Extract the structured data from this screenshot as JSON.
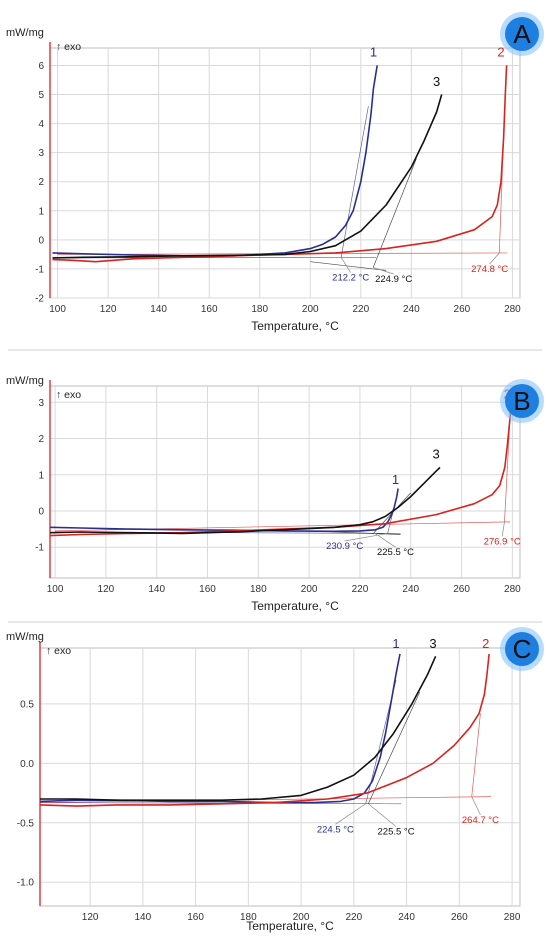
{
  "colors": {
    "curve_1": "#2a2f8f",
    "curve_2": "#d8231f",
    "curve_3": "#111111",
    "badge_fill": "#1f7fe0",
    "badge_glow": "#7cc0ff",
    "left_axis": "#e03030",
    "grid": "#d9d9d9",
    "divider": "#cfcfcf"
  },
  "chart_data": [
    {
      "panel": "A",
      "type": "line",
      "ylabel": "mW/mg",
      "exo_label": "↑ exo",
      "xlabel": "Temperature, °C",
      "xlim": [
        97,
        283
      ],
      "ylim": [
        -2,
        6.6
      ],
      "xticks": [
        100,
        120,
        140,
        160,
        180,
        200,
        220,
        240,
        260,
        280
      ],
      "yticks": [
        -2,
        -1,
        0,
        1,
        2,
        3,
        4,
        5,
        6
      ],
      "ytick_labels": [
        "-2",
        "-1",
        "0",
        "1",
        "2",
        "3",
        "4",
        "5",
        "6"
      ],
      "grid": true,
      "series": [
        {
          "name": "1",
          "color_key": "curve_1",
          "x": [
            98,
            110,
            130,
            150,
            170,
            190,
            200,
            205,
            210,
            214,
            217,
            220,
            222,
            224,
            225,
            226.5
          ],
          "y": [
            -0.45,
            -0.48,
            -0.52,
            -0.55,
            -0.55,
            -0.45,
            -0.3,
            -0.15,
            0.1,
            0.5,
            1.0,
            2.0,
            3.0,
            4.3,
            5.2,
            6.0
          ]
        },
        {
          "name": "2",
          "color_key": "curve_2",
          "x": [
            98,
            105,
            115,
            130,
            150,
            170,
            190,
            210,
            230,
            250,
            265,
            272,
            274,
            275.5,
            276.5,
            277.2,
            277.7
          ],
          "y": [
            -0.68,
            -0.7,
            -0.75,
            -0.65,
            -0.6,
            -0.55,
            -0.5,
            -0.45,
            -0.3,
            -0.05,
            0.35,
            0.8,
            1.2,
            2.0,
            3.5,
            5.0,
            6.0
          ]
        },
        {
          "name": "3",
          "color_key": "curve_3",
          "x": [
            98,
            110,
            130,
            150,
            170,
            190,
            200,
            210,
            220,
            230,
            240,
            245,
            250,
            252
          ],
          "y": [
            -0.62,
            -0.6,
            -0.58,
            -0.55,
            -0.53,
            -0.5,
            -0.4,
            -0.2,
            0.3,
            1.2,
            2.5,
            3.4,
            4.4,
            5.0
          ]
        }
      ],
      "series_labels": [
        {
          "text": "1",
          "x": 225,
          "y": 6.3,
          "color_key": "curve_1"
        },
        {
          "text": "3",
          "x": 250,
          "y": 5.3,
          "color_key": "curve_3"
        },
        {
          "text": "2",
          "x": 275.5,
          "y": 6.3,
          "color_key": "curve_2"
        }
      ],
      "onsets": [
        {
          "label": "212.2 °C",
          "x": 212.2,
          "y": -0.6,
          "lx": 216,
          "ly": -1.4,
          "color_key": "curve_1"
        },
        {
          "label": "224.9 °C",
          "x": 224.9,
          "y": -0.95,
          "lx": 233,
          "ly": -1.45,
          "color_key": "curve_3"
        },
        {
          "label": "274.8 °C",
          "x": 274.8,
          "y": -0.45,
          "lx": 271,
          "ly": -1.1,
          "color_key": "curve_2"
        }
      ],
      "tangents": [
        {
          "x1": 100,
          "y1": -0.62,
          "x2": 226,
          "y2": -0.6,
          "color_key": "curve_1"
        },
        {
          "x1": 212.2,
          "y1": -0.6,
          "x2": 223,
          "y2": 4.6,
          "color_key": "curve_1"
        },
        {
          "x1": 100,
          "y1": -0.5,
          "x2": 278,
          "y2": -0.45,
          "color_key": "curve_2"
        },
        {
          "x1": 274.8,
          "y1": -0.45,
          "x2": 276.5,
          "y2": 3.5,
          "color_key": "curve_2"
        },
        {
          "x1": 200,
          "y1": -0.75,
          "x2": 230,
          "y2": -1.05,
          "color_key": "curve_3"
        },
        {
          "x1": 224.9,
          "y1": -0.95,
          "x2": 242,
          "y2": 2.8,
          "color_key": "curve_3"
        }
      ]
    },
    {
      "panel": "B",
      "type": "line",
      "ylabel": "mW/mg",
      "exo_label": "↑ exo",
      "xlabel": "Temperature, °C",
      "xlim": [
        98,
        283
      ],
      "ylim": [
        -1.85,
        3.45
      ],
      "xticks": [
        100,
        120,
        140,
        160,
        180,
        200,
        220,
        240,
        260,
        280
      ],
      "yticks": [
        -1,
        0,
        1,
        2,
        3
      ],
      "ytick_labels": [
        "-1",
        "0",
        "1",
        "2",
        "3"
      ],
      "grid": true,
      "series": [
        {
          "name": "1",
          "color_key": "curve_1",
          "x": [
            98,
            110,
            130,
            150,
            170,
            190,
            210,
            220,
            226,
            229,
            231,
            232.5,
            233.5,
            234.5,
            235
          ],
          "y": [
            -0.45,
            -0.47,
            -0.5,
            -0.52,
            -0.53,
            -0.55,
            -0.56,
            -0.55,
            -0.52,
            -0.45,
            -0.3,
            -0.1,
            0.1,
            0.4,
            0.62
          ]
        },
        {
          "name": "2",
          "color_key": "curve_2",
          "x": [
            98,
            110,
            130,
            150,
            170,
            190,
            210,
            230,
            250,
            265,
            272,
            275,
            277,
            278,
            279,
            279.7
          ],
          "y": [
            -0.68,
            -0.65,
            -0.62,
            -0.6,
            -0.55,
            -0.5,
            -0.45,
            -0.35,
            -0.1,
            0.2,
            0.45,
            0.7,
            1.2,
            1.8,
            2.5,
            3.05
          ]
        },
        {
          "name": "3",
          "color_key": "curve_3",
          "x": [
            98,
            110,
            130,
            150,
            170,
            190,
            210,
            220,
            225,
            230,
            235,
            240,
            245,
            250,
            251.5
          ],
          "y": [
            -0.6,
            -0.58,
            -0.6,
            -0.62,
            -0.58,
            -0.52,
            -0.45,
            -0.38,
            -0.3,
            -0.15,
            0.1,
            0.4,
            0.75,
            1.1,
            1.2
          ]
        }
      ],
      "series_labels": [
        {
          "text": "1",
          "x": 234,
          "y": 0.75,
          "color_key": "curve_1"
        },
        {
          "text": "3",
          "x": 250,
          "y": 1.45,
          "color_key": "curve_3"
        },
        {
          "text": "2",
          "x": 278,
          "y": 3.1,
          "color_key": "curve_2"
        }
      ],
      "onsets": [
        {
          "label": "230.9 °C",
          "x": 230.9,
          "y": -0.62,
          "lx": 214,
          "ly": -1.05,
          "color_key": "curve_1"
        },
        {
          "label": "225.5 °C",
          "x": 225.5,
          "y": -0.6,
          "lx": 234,
          "ly": -1.22,
          "color_key": "curve_3"
        },
        {
          "label": "276.9 °C",
          "x": 276.9,
          "y": -0.3,
          "lx": 276,
          "ly": -0.92,
          "color_key": "curve_2"
        }
      ],
      "tangents": [
        {
          "x1": 100,
          "y1": -0.58,
          "x2": 236,
          "y2": -0.62,
          "color_key": "curve_1"
        },
        {
          "x1": 230.9,
          "y1": -0.62,
          "x2": 234.5,
          "y2": 0.4,
          "color_key": "curve_1"
        },
        {
          "x1": 100,
          "y1": -0.55,
          "x2": 279,
          "y2": -0.3,
          "color_key": "curve_2"
        },
        {
          "x1": 276.9,
          "y1": -0.3,
          "x2": 279,
          "y2": 2.5,
          "color_key": "curve_2"
        },
        {
          "x1": 200,
          "y1": -0.55,
          "x2": 236,
          "y2": -0.65,
          "color_key": "curve_3"
        },
        {
          "x1": 225.5,
          "y1": -0.6,
          "x2": 240,
          "y2": 0.5,
          "color_key": "curve_3"
        }
      ]
    },
    {
      "panel": "C",
      "type": "line",
      "ylabel": "mW/mg",
      "exo_label": "↑ exo",
      "xlabel": "Temperature, °C",
      "xlim": [
        101,
        283
      ],
      "ylim": [
        -1.2,
        0.97
      ],
      "xticks": [
        120,
        140,
        160,
        180,
        200,
        220,
        240,
        260,
        280
      ],
      "yticks": [
        -1.0,
        -0.5,
        0.0,
        0.5
      ],
      "ytick_labels": [
        "-1.0",
        "-0.5",
        "0.0",
        "0.5"
      ],
      "grid": true,
      "series": [
        {
          "name": "1",
          "color_key": "curve_1",
          "x": [
            101,
            115,
            130,
            150,
            170,
            190,
            205,
            215,
            220,
            224,
            227,
            230,
            232,
            234,
            236,
            237.5
          ],
          "y": [
            -0.32,
            -0.31,
            -0.31,
            -0.32,
            -0.32,
            -0.33,
            -0.33,
            -0.32,
            -0.3,
            -0.25,
            -0.15,
            0.05,
            0.25,
            0.5,
            0.75,
            0.92
          ]
        },
        {
          "name": "2",
          "color_key": "curve_2",
          "x": [
            101,
            115,
            130,
            150,
            170,
            190,
            210,
            225,
            240,
            250,
            258,
            264,
            267.5,
            269.5,
            270.5,
            271.3
          ],
          "y": [
            -0.35,
            -0.36,
            -0.35,
            -0.35,
            -0.34,
            -0.33,
            -0.3,
            -0.25,
            -0.12,
            0.0,
            0.15,
            0.3,
            0.42,
            0.58,
            0.75,
            0.92
          ]
        },
        {
          "name": "3",
          "color_key": "curve_3",
          "x": [
            101,
            115,
            130,
            150,
            170,
            185,
            200,
            210,
            220,
            228,
            235,
            242,
            248,
            251
          ],
          "y": [
            -0.3,
            -0.3,
            -0.31,
            -0.31,
            -0.31,
            -0.3,
            -0.27,
            -0.2,
            -0.1,
            0.05,
            0.25,
            0.5,
            0.75,
            0.9
          ]
        }
      ],
      "series_labels": [
        {
          "text": "1",
          "x": 236,
          "y": 0.97,
          "color_key": "curve_1"
        },
        {
          "text": "3",
          "x": 250,
          "y": 0.97,
          "color_key": "curve_3"
        },
        {
          "text": "2",
          "x": 270,
          "y": 0.97,
          "color_key": "curve_2"
        }
      ],
      "onsets": [
        {
          "label": "224.5 °C",
          "x": 224.5,
          "y": -0.34,
          "lx": 213,
          "ly": -0.58,
          "color_key": "curve_1"
        },
        {
          "label": "225.5 °C",
          "x": 225.5,
          "y": -0.34,
          "lx": 236,
          "ly": -0.6,
          "color_key": "curve_3"
        },
        {
          "label": "264.7 °C",
          "x": 264.7,
          "y": -0.28,
          "lx": 268,
          "ly": -0.5,
          "color_key": "curve_2"
        }
      ],
      "tangents": [
        {
          "x1": 101,
          "y1": -0.33,
          "x2": 238,
          "y2": -0.34,
          "color_key": "curve_1"
        },
        {
          "x1": 224.5,
          "y1": -0.34,
          "x2": 236,
          "y2": 0.7,
          "color_key": "curve_1"
        },
        {
          "x1": 101,
          "y1": -0.33,
          "x2": 272,
          "y2": -0.28,
          "color_key": "curve_2"
        },
        {
          "x1": 264.7,
          "y1": -0.28,
          "x2": 268,
          "y2": 0.42,
          "color_key": "curve_2"
        },
        {
          "x1": 225.5,
          "y1": -0.34,
          "x2": 245,
          "y2": 0.6,
          "color_key": "curve_3"
        }
      ]
    }
  ]
}
